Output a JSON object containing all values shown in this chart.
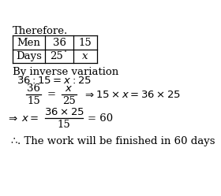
{
  "background_color": "#ffffff",
  "text_color": "#000000",
  "font_size": 9.5,
  "title": "Therefore.",
  "table_rows": [
    [
      "Men",
      "36",
      "15"
    ],
    [
      "Days",
      "25˙",
      "x"
    ]
  ],
  "line_by_inverse": "By inverse variation",
  "line_ratio": "36 : 15 = x : 25",
  "frac1_num": "36",
  "frac1_den": "15",
  "frac2_num": "x",
  "frac2_den": "25",
  "implication1": "15 × x = 36 × 25",
  "frac3_num": "36 × 25",
  "frac3_den": "15",
  "result": "= 60",
  "xvar": "x =",
  "conclusion": ". The work will be finished in 60 days"
}
